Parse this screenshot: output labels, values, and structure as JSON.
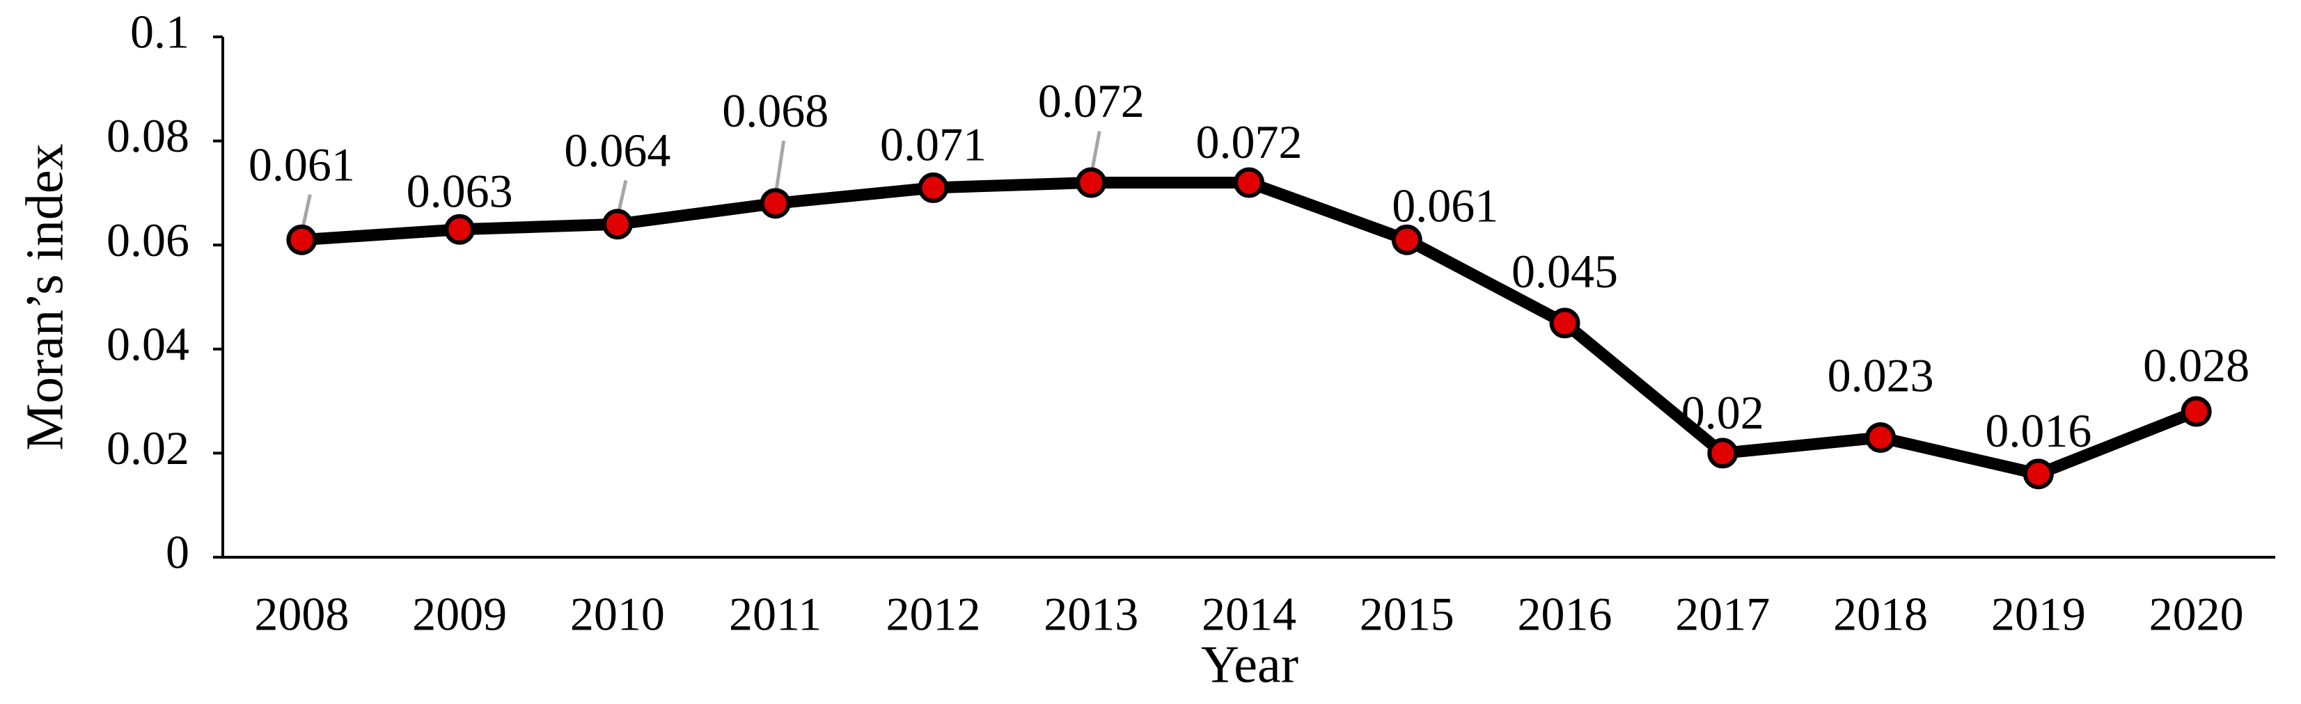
{
  "chart_data": {
    "type": "line",
    "x_label": "Year",
    "y_label": "Moran’s index",
    "categories": [
      "2008",
      "2009",
      "2010",
      "2011",
      "2012",
      "2013",
      "2014",
      "2015",
      "2016",
      "2017",
      "2018",
      "2019",
      "2020"
    ],
    "series": [
      {
        "name": "Moran’s index",
        "color": "#000000",
        "marker_color": "#e00000",
        "values": [
          0.061,
          0.063,
          0.064,
          0.068,
          0.071,
          0.072,
          0.072,
          0.061,
          0.045,
          0.02,
          0.023,
          0.016,
          0.028
        ]
      }
    ],
    "ylim": [
      0,
      0.1
    ],
    "yticks": [
      0,
      0.02,
      0.04,
      0.06,
      0.08,
      0.1
    ],
    "grid": false,
    "data_labels": true
  }
}
